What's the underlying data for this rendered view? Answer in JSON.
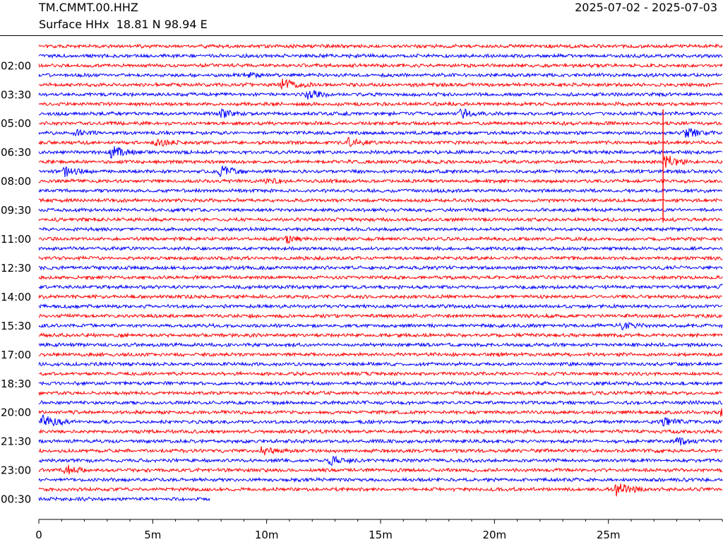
{
  "header": {
    "station": "TM.CMMT.00.HHZ",
    "subtitle": "Surface HHx  18.81 N 98.94 E",
    "date_range": "2025-07-02 - 2025-07-03"
  },
  "colors": {
    "trace_a": "#ff0000",
    "trace_b": "#0000ff",
    "axis": "#000000"
  },
  "chart_data": {
    "type": "line",
    "title": "TM.CMMT.00.HHZ",
    "subtitle": "Surface HHx  18.81 N 98.94 E",
    "date_range": "2025-07-02 - 2025-07-03",
    "xlabel": "",
    "ylabel": "",
    "x_unit": "minutes",
    "xlim": [
      0,
      30
    ],
    "x_ticks": [
      0,
      5,
      10,
      15,
      20,
      25
    ],
    "x_tick_labels": [
      "0",
      "5m",
      "10m",
      "15m",
      "20m",
      "25m"
    ],
    "trace_minutes": 30,
    "row_count": 48,
    "row_start_time": "00:30",
    "y_tick_labels": [
      "02:00",
      "03:30",
      "05:00",
      "06:30",
      "08:00",
      "09:30",
      "11:00",
      "12:30",
      "14:00",
      "15:30",
      "17:00",
      "18:30",
      "20:00",
      "21:30",
      "23:00",
      "00:30"
    ],
    "color_pattern": [
      "red",
      "blue",
      "red",
      "blue"
    ],
    "last_row_end_minute": 7.5,
    "grid": false,
    "events": [
      {
        "row": 3,
        "minute": 9.1,
        "amp": 4
      },
      {
        "row": 4,
        "minute": 10.7,
        "amp": 9
      },
      {
        "row": 5,
        "minute": 11.8,
        "amp": 7
      },
      {
        "row": 7,
        "minute": 8.0,
        "amp": 5
      },
      {
        "row": 7,
        "minute": 18.5,
        "amp": 6
      },
      {
        "row": 9,
        "minute": 1.6,
        "amp": 4
      },
      {
        "row": 9,
        "minute": 28.4,
        "amp": 8
      },
      {
        "row": 10,
        "minute": 5.2,
        "amp": 5
      },
      {
        "row": 10,
        "minute": 13.6,
        "amp": 6
      },
      {
        "row": 11,
        "minute": 3.2,
        "amp": 9
      },
      {
        "row": 12,
        "minute": 27.5,
        "amp": 10
      },
      {
        "row": 13,
        "minute": 1.1,
        "amp": 8
      },
      {
        "row": 13,
        "minute": 8.0,
        "amp": 8
      },
      {
        "row": 14,
        "minute": 10.0,
        "amp": 4
      },
      {
        "row": 20,
        "minute": 10.9,
        "amp": 5
      },
      {
        "row": 25,
        "minute": 30.0,
        "amp": 10
      },
      {
        "row": 29,
        "minute": 25.6,
        "amp": 5
      },
      {
        "row": 39,
        "minute": 0.2,
        "amp": 10
      },
      {
        "row": 39,
        "minute": 27.4,
        "amp": 6
      },
      {
        "row": 38,
        "minute": 30.0,
        "amp": 8
      },
      {
        "row": 41,
        "minute": 28.0,
        "amp": 5
      },
      {
        "row": 42,
        "minute": 9.8,
        "amp": 6
      },
      {
        "row": 43,
        "minute": 12.8,
        "amp": 6
      },
      {
        "row": 44,
        "minute": 1.2,
        "amp": 6
      },
      {
        "row": 46,
        "minute": 25.4,
        "amp": 12
      }
    ],
    "long_spike": {
      "minute": 27.4,
      "from_row": 7,
      "to_row": 18
    }
  }
}
